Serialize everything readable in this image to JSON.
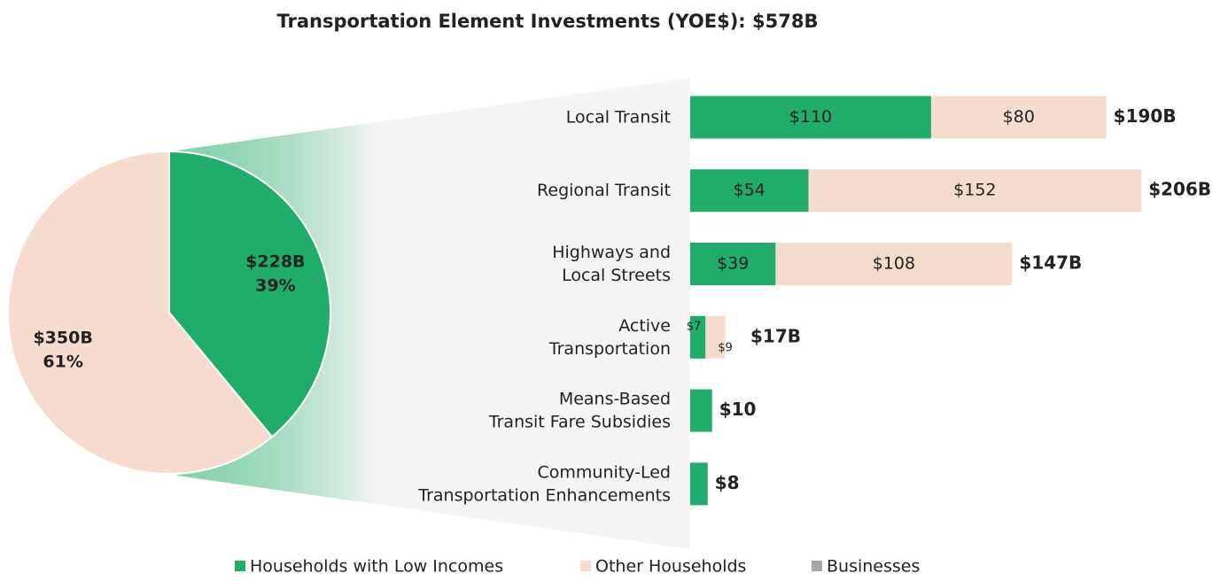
{
  "chart_data": [
    {
      "type": "pie",
      "title": "Transportation Element Investments (YOE$): $578B",
      "values": [
        39,
        61
      ],
      "value_labels": [
        "39%",
        "61%"
      ],
      "amount_labels": [
        "$228B",
        "$350B"
      ],
      "colors": [
        "#20ad6b",
        "#f5dccf"
      ]
    },
    {
      "type": "stacked-bar-horizontal",
      "categories": [
        "Local Transit",
        "Regional Transit",
        "Highways and\nLocal Streets",
        "Active\nTransportation",
        "Means-Based\nTransit Fare Subsidies",
        "Community-Led\nTransportation Enhancements"
      ],
      "xlim": [
        0,
        250
      ],
      "series": [
        {
          "name": "Households with Low Incomes",
          "color": "#20ad6b",
          "values": [
            110,
            54,
            39,
            7,
            10,
            8
          ],
          "value_labels": [
            "$110",
            "$54",
            "$39",
            "$7",
            null,
            null
          ]
        },
        {
          "name": "Other Households",
          "color": "#f5dccf",
          "values": [
            80,
            152,
            108,
            9,
            null,
            null
          ],
          "value_labels": [
            "$80",
            "$152",
            "$108",
            "$9",
            null,
            null
          ]
        },
        {
          "name": "Businesses",
          "color": "#a6a6a6",
          "values": [
            null,
            null,
            null,
            null,
            null,
            null
          ]
        }
      ],
      "totals": [
        190,
        206,
        147,
        17,
        10,
        8
      ],
      "total_labels": [
        "$190B",
        "$206B",
        "$147B",
        "$17B",
        "$10",
        "$8"
      ]
    }
  ]
}
